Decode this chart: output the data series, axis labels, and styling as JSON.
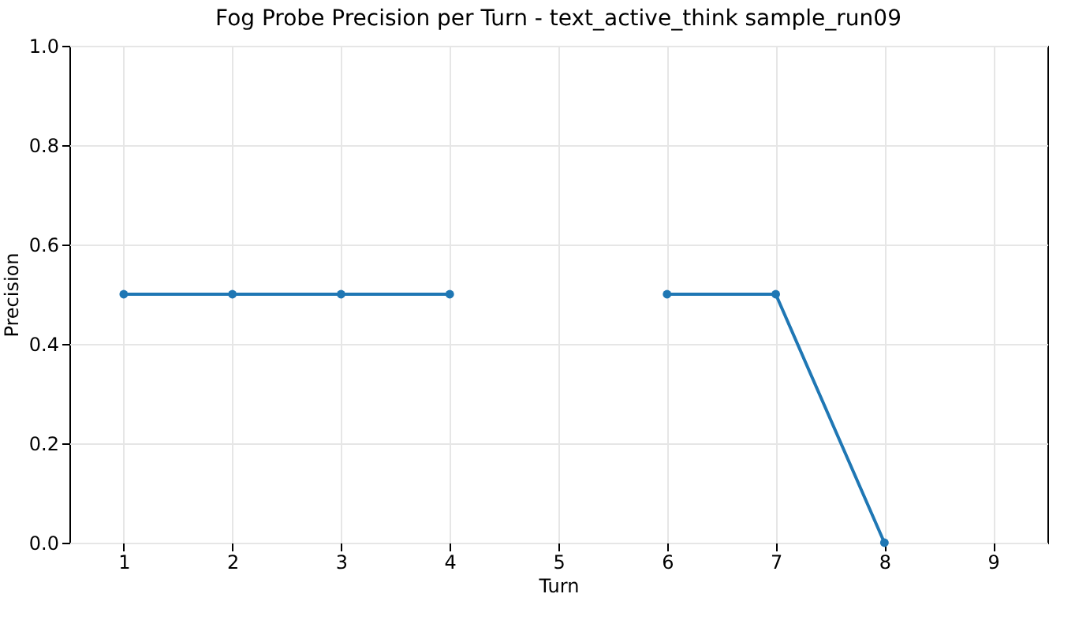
{
  "chart_data": {
    "type": "line",
    "title": "Fog Probe Precision per Turn - text_active_think sample_run09",
    "xlabel": "Turn",
    "ylabel": "Precision",
    "x": [
      1,
      2,
      3,
      4,
      5,
      6,
      7,
      8
    ],
    "series": [
      {
        "color": "#1f77b4",
        "values": [
          0.5,
          0.5,
          0.5,
          0.5,
          null,
          0.5,
          0.5,
          0.0
        ]
      }
    ],
    "xlim": [
      0.5,
      9.5
    ],
    "xticks": [
      1,
      2,
      3,
      4,
      5,
      6,
      7,
      8,
      9
    ],
    "ylim": [
      0,
      1
    ],
    "yticks": [
      {
        "value": 0,
        "label": "0.0"
      },
      {
        "value": 0.2,
        "label": "0.2"
      },
      {
        "value": 0.4,
        "label": "0.4"
      },
      {
        "value": 0.6,
        "label": "0.6"
      },
      {
        "value": 0.8,
        "label": "0.8"
      },
      {
        "value": 1,
        "label": "1.0"
      }
    ],
    "grid": true,
    "marker": "circle",
    "line_style": "solid"
  }
}
